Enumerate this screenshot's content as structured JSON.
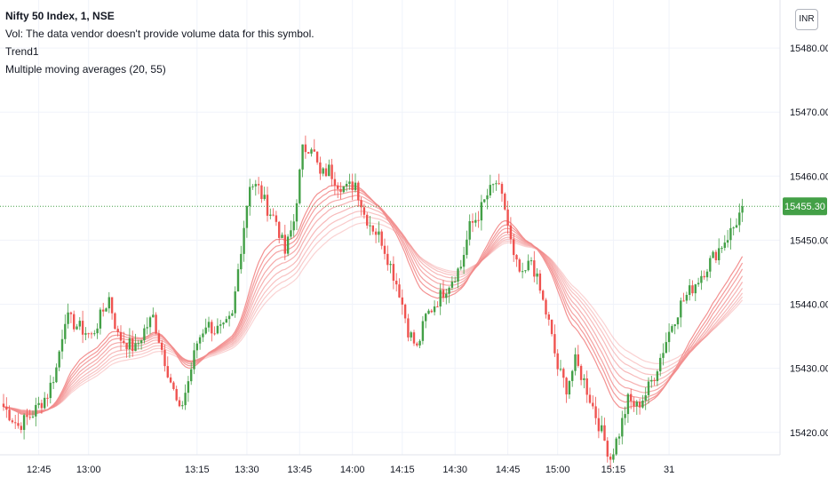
{
  "header": {
    "title": "Nifty 50 Index, 1, NSE",
    "vol_note": "Vol: The data vendor doesn't provide volume data for this symbol.",
    "indicator_1": "Trend1",
    "indicator_2": "Multiple moving averages (20, 55)"
  },
  "currency": "INR",
  "colors": {
    "up": "#43a047",
    "down": "#ef5350",
    "ma": "#f28b8b",
    "last_price_bg": "#43a047",
    "grid": "#f0f3fa",
    "axis_text": "#131722"
  },
  "chart_data": {
    "type": "candlestick",
    "symbol": "Nifty 50 Index",
    "interval": "1",
    "exchange": "NSE",
    "x_tick_labels": [
      "12:45",
      "13:00",
      "13:15",
      "13:30",
      "13:45",
      "14:00",
      "14:15",
      "14:30",
      "14:45",
      "15:00",
      "15:15",
      "31"
    ],
    "y_tick_labels": [
      "15420.00",
      "15430.00",
      "15440.00",
      "15450.00",
      "15460.00",
      "15470.00",
      "15480.00"
    ],
    "y_ticks": [
      15420,
      15430,
      15440,
      15450,
      15460,
      15470,
      15480
    ],
    "ylim": [
      15416.5,
      15487.5
    ],
    "last_price": 15455.3,
    "last_price_label": "15455.30",
    "grid": true,
    "close_path": [
      [
        0,
        15424
      ],
      [
        5,
        15421
      ],
      [
        10,
        15423
      ],
      [
        15,
        15426
      ],
      [
        18,
        15430
      ],
      [
        21,
        15438
      ],
      [
        24,
        15437
      ],
      [
        27,
        15436
      ],
      [
        30,
        15435
      ],
      [
        33,
        15438
      ],
      [
        36,
        15441
      ],
      [
        39,
        15435
      ],
      [
        42,
        15434
      ],
      [
        45,
        15433
      ],
      [
        48,
        15436
      ],
      [
        51,
        15438
      ],
      [
        54,
        15433
      ],
      [
        57,
        15428
      ],
      [
        60,
        15423
      ],
      [
        63,
        15428
      ],
      [
        66,
        15434
      ],
      [
        69,
        15437
      ],
      [
        72,
        15436
      ],
      [
        75,
        15436
      ],
      [
        78,
        15438
      ],
      [
        81,
        15449
      ],
      [
        84,
        15459
      ],
      [
        87,
        15458
      ],
      [
        90,
        15455
      ],
      [
        93,
        15453
      ],
      [
        96,
        15448
      ],
      [
        99,
        15453
      ],
      [
        102,
        15464
      ],
      [
        105,
        15465
      ],
      [
        108,
        15460
      ],
      [
        111,
        15461
      ],
      [
        114,
        15459
      ],
      [
        117,
        15458
      ],
      [
        120,
        15459
      ],
      [
        123,
        15454
      ],
      [
        126,
        15452
      ],
      [
        129,
        15450
      ],
      [
        132,
        15446
      ],
      [
        135,
        15442
      ],
      [
        138,
        15436
      ],
      [
        141,
        15433
      ],
      [
        144,
        15438
      ],
      [
        147,
        15440
      ],
      [
        150,
        15442
      ],
      [
        153,
        15444
      ],
      [
        156,
        15446
      ],
      [
        159,
        15452
      ],
      [
        162,
        15454
      ],
      [
        165,
        15457
      ],
      [
        168,
        15459
      ],
      [
        171,
        15455
      ],
      [
        174,
        15447
      ],
      [
        177,
        15444
      ],
      [
        180,
        15447
      ],
      [
        183,
        15442
      ],
      [
        186,
        15437
      ],
      [
        189,
        15430
      ],
      [
        192,
        15427
      ],
      [
        195,
        15431
      ],
      [
        198,
        15428
      ],
      [
        201,
        15424
      ],
      [
        204,
        15420
      ],
      [
        207,
        15416
      ],
      [
        210,
        15420
      ],
      [
        213,
        15425
      ],
      [
        216,
        15424
      ],
      [
        219,
        15426
      ],
      [
        222,
        15429
      ],
      [
        225,
        15433
      ],
      [
        228,
        15437
      ],
      [
        231,
        15440
      ],
      [
        234,
        15442
      ],
      [
        237,
        15444
      ],
      [
        240,
        15446
      ],
      [
        243,
        15448
      ],
      [
        246,
        15450
      ],
      [
        249,
        15452
      ],
      [
        252,
        15455
      ]
    ]
  }
}
